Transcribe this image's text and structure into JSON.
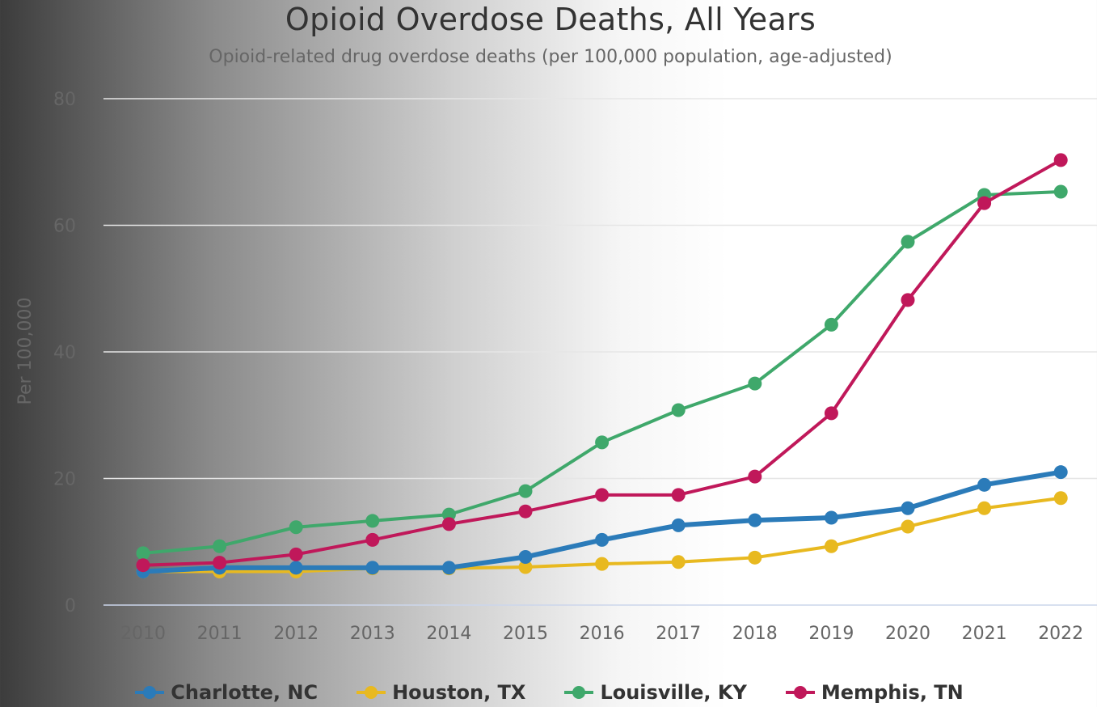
{
  "chart_data": {
    "type": "line",
    "title": "Opioid Overdose Deaths, All Years",
    "subtitle": "Opioid-related drug overdose deaths (per 100,000 population, age-adjusted)",
    "ylabel": "Per 100,000",
    "xlabel": "",
    "ylim": [
      0,
      80
    ],
    "yticks": [
      0,
      20,
      40,
      60,
      80
    ],
    "grid": true,
    "legend_position": "bottom",
    "categories": [
      "2010",
      "2011",
      "2012",
      "2013",
      "2014",
      "2015",
      "2016",
      "2017",
      "2018",
      "2019",
      "2020",
      "2021",
      "2022"
    ],
    "series": [
      {
        "name": "Charlotte, NC",
        "color": "#2b7bb9",
        "values": [
          5.3,
          5.9,
          5.9,
          5.9,
          5.9,
          7.6,
          10.3,
          12.6,
          13.4,
          13.8,
          15.3,
          19.0,
          21.0
        ]
      },
      {
        "name": "Houston, TX",
        "color": "#e8b920",
        "values": [
          5.3,
          5.3,
          5.3,
          5.8,
          5.8,
          6.0,
          6.5,
          6.8,
          7.5,
          9.3,
          12.4,
          15.3,
          16.9
        ]
      },
      {
        "name": "Louisville, KY",
        "color": "#3fa86b",
        "values": [
          8.2,
          9.3,
          12.3,
          13.3,
          14.3,
          18.0,
          25.7,
          30.8,
          35.0,
          44.3,
          57.4,
          64.8,
          65.3
        ]
      },
      {
        "name": "Memphis, TN",
        "color": "#c0185a",
        "values": [
          6.3,
          6.7,
          8.0,
          10.3,
          12.8,
          14.8,
          17.4,
          17.4,
          20.3,
          30.3,
          48.2,
          63.5,
          70.3
        ]
      }
    ]
  }
}
